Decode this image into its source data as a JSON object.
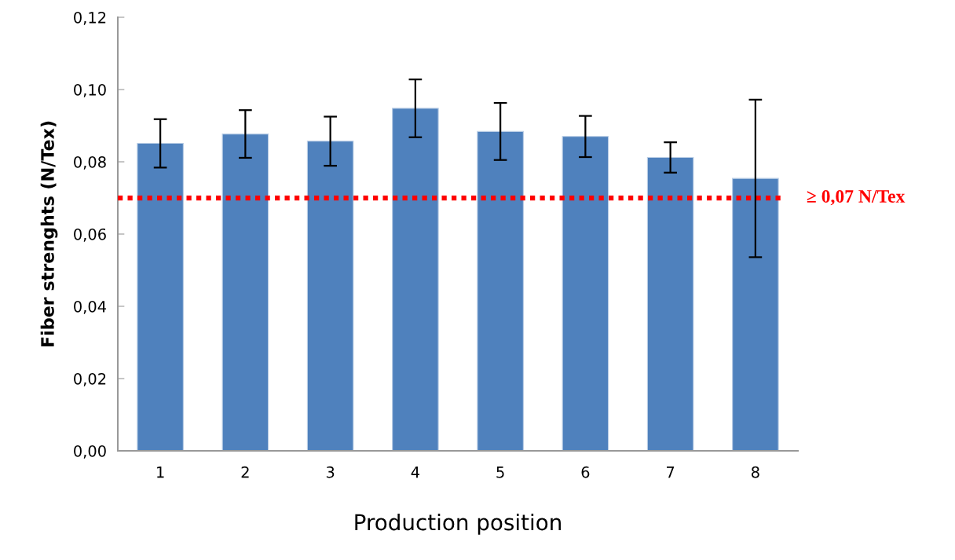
{
  "chart_data": {
    "type": "bar",
    "xlabel": "Production position",
    "ylabel": "Fiber strenghts (N/Tex)",
    "categories": [
      "1",
      "2",
      "3",
      "4",
      "5",
      "6",
      "7",
      "8"
    ],
    "values": [
      0.0851,
      0.0877,
      0.0857,
      0.0948,
      0.0884,
      0.087,
      0.0812,
      0.0754
    ],
    "errors": [
      0.0067,
      0.0066,
      0.0068,
      0.008,
      0.0079,
      0.0057,
      0.0042,
      0.0218
    ],
    "color": "#4f81bd",
    "ylim": [
      0,
      0.12
    ],
    "yticks": [
      {
        "value": 0,
        "label": "0,00"
      },
      {
        "value": 0.02,
        "label": "0,02"
      },
      {
        "value": 0.04,
        "label": "0,04"
      },
      {
        "value": 0.06,
        "label": "0,06"
      },
      {
        "value": 0.08,
        "label": "0,08"
      },
      {
        "value": 0.1,
        "label": "0,10"
      },
      {
        "value": 0.12,
        "label": "0,12"
      }
    ],
    "ref_lines": [
      {
        "axis": "y",
        "value": 0.07,
        "label": "≥ 0,07 N/Tex",
        "color": "#ff0000",
        "line_style": "dotted"
      }
    ],
    "grid": false,
    "legend": false
  }
}
